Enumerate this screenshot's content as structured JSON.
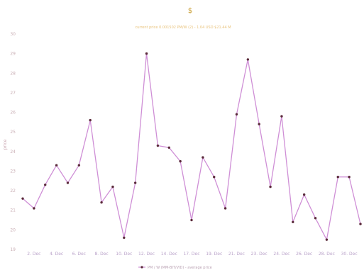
{
  "chart_data": {
    "type": "line",
    "title": "$",
    "subtitle": "current price 0.001502 PM/W (2) - 1.04 USD $21.44 M",
    "ylabel": "price",
    "ylim": [
      19,
      30
    ],
    "yticks": [
      {
        "value": 19,
        "label": "19"
      },
      {
        "value": 20,
        "label": "20"
      },
      {
        "value": 21,
        "label": "21"
      },
      {
        "value": 22,
        "label": "22"
      },
      {
        "value": 23,
        "label": "23"
      },
      {
        "value": 24,
        "label": "24"
      },
      {
        "value": 25,
        "label": "25"
      },
      {
        "value": 26,
        "label": "26"
      },
      {
        "value": 27,
        "label": "27"
      },
      {
        "value": 28,
        "label": "28"
      },
      {
        "value": 29,
        "label": "29"
      },
      {
        "value": 30,
        "label": "30"
      }
    ],
    "xticks": [
      {
        "index": 1,
        "label": "2. Dec"
      },
      {
        "index": 3,
        "label": "4. Dec"
      },
      {
        "index": 5,
        "label": "6. Dec"
      },
      {
        "index": 7,
        "label": "8. Dec"
      },
      {
        "index": 9,
        "label": "10. Dec"
      },
      {
        "index": 11,
        "label": "12. Dec"
      },
      {
        "index": 13,
        "label": "14. Dec"
      },
      {
        "index": 15,
        "label": "17. Dec"
      },
      {
        "index": 17,
        "label": "19. Dec"
      },
      {
        "index": 19,
        "label": "21. Dec"
      },
      {
        "index": 21,
        "label": "23. Dec"
      },
      {
        "index": 23,
        "label": "24. Dec"
      },
      {
        "index": 25,
        "label": "26. Dec"
      },
      {
        "index": 27,
        "label": "28. Dec"
      },
      {
        "index": 29,
        "label": "30. Dec"
      }
    ],
    "x": [
      0,
      1,
      2,
      3,
      4,
      5,
      6,
      7,
      8,
      9,
      10,
      11,
      12,
      13,
      14,
      15,
      16,
      17,
      18,
      19,
      20,
      21,
      22,
      23,
      24,
      25,
      26,
      27,
      28,
      29,
      30
    ],
    "series": [
      {
        "name": "PM / W (MM-BIT/VID) - average price",
        "values": [
          21.6,
          21.1,
          22.3,
          23.3,
          22.4,
          23.3,
          25.6,
          21.4,
          22.2,
          19.6,
          22.4,
          29.0,
          24.3,
          24.2,
          23.5,
          20.5,
          23.7,
          22.7,
          21.1,
          25.9,
          28.7,
          25.4,
          22.2,
          25.8,
          20.4,
          21.8,
          20.6,
          19.5,
          22.7,
          22.7,
          20.3
        ],
        "color": "#cf8fd6"
      }
    ],
    "marker_color": "#5a2a3a",
    "grid": false,
    "legend_position": "bottom-center"
  }
}
